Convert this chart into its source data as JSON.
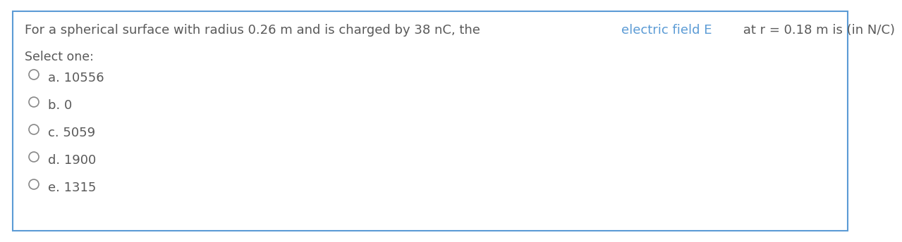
{
  "question_part1": "For a spherical surface with radius 0.26 m and is charged by 38 nC, the ",
  "question_part2": "electric field E",
  "question_part3": " at r = 0.18 m is (in N/C)",
  "select_one_label": "Select one:",
  "options": [
    "a. 10556",
    "b. 0",
    "c. 5059",
    "d. 1900",
    "e. 1315"
  ],
  "bg_color": "#ffffff",
  "border_color": "#5b9bd5",
  "text_color": "#595959",
  "electric_field_color": "#5b9bd5",
  "option_text_color": "#595959",
  "circle_color": "#888888",
  "font_size": 13,
  "select_label_font_size": 12.5
}
